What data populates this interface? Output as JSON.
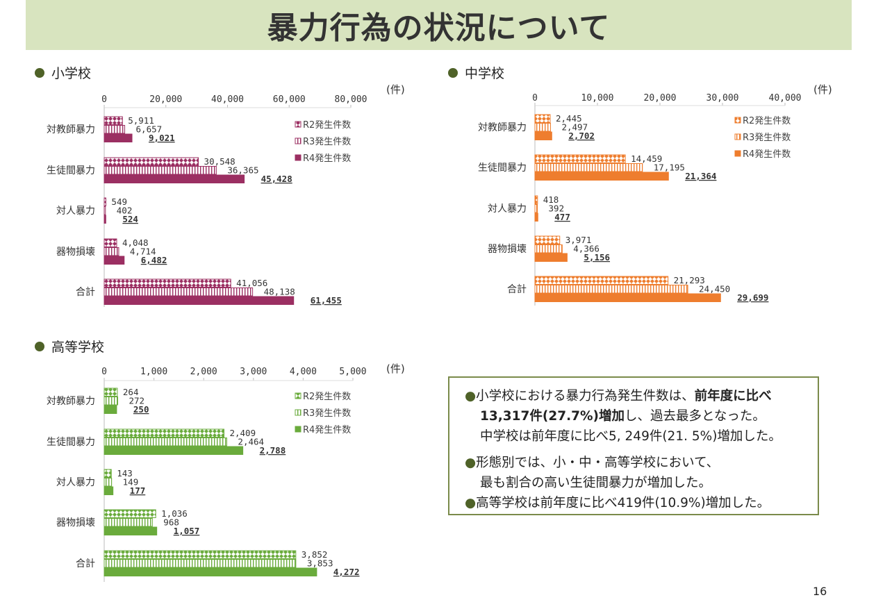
{
  "title": "暴力行為の状況について",
  "page_number": "16",
  "summary": {
    "line1_a": "小学校における暴力行為発生件数は、",
    "line1_b": "前年度に比べ",
    "line2_a": "13,317件(27.7%)増加",
    "line2_b": "し、過去最多となった。",
    "line3": "中学校は前年度に比べ5, 249件(21. 5%)増加した。",
    "line4": "形態別では、小・中・高等学校において、",
    "line5": "最も割合の高い生徒間暴力が増加した。",
    "line6": "高等学校は前年度に比べ419件(10.9%)増加した。"
  },
  "chart_data": [
    {
      "type": "bar",
      "orientation": "horizontal",
      "title": "小学校",
      "unit": "(件)",
      "categories": [
        "対教師暴力",
        "生徒間暴力",
        "対人暴力",
        "器物損壊",
        "合計"
      ],
      "xlim": [
        0,
        80000
      ],
      "ticks": [
        "0",
        "20,000",
        "40,000",
        "60,000",
        "80,000"
      ],
      "tick_values": [
        0,
        20000,
        40000,
        60000,
        80000
      ],
      "color": "#9b2f62",
      "legend_position": "right",
      "series": [
        {
          "name": "R2発生件数",
          "pattern": "checker",
          "values": [
            5911,
            30548,
            549,
            4048,
            41056
          ],
          "labels": [
            "5,911",
            "30,548",
            "549",
            "4,048",
            "41,056"
          ]
        },
        {
          "name": "R3発生件数",
          "pattern": "vertical-stripes",
          "values": [
            6657,
            36365,
            402,
            4714,
            48138
          ],
          "labels": [
            "6,657",
            "36,365",
            "402",
            "4,714",
            "48,138"
          ]
        },
        {
          "name": "R4発生件数",
          "pattern": "solid",
          "values": [
            9021,
            45428,
            524,
            6482,
            61455
          ],
          "labels": [
            "9,021",
            "45,428",
            "524",
            "6,482",
            "61,455"
          ]
        }
      ]
    },
    {
      "type": "bar",
      "orientation": "horizontal",
      "title": "中学校",
      "unit": "(件)",
      "categories": [
        "対教師暴力",
        "生徒間暴力",
        "対人暴力",
        "器物損壊",
        "合計"
      ],
      "xlim": [
        0,
        40000
      ],
      "ticks": [
        "0",
        "10,000",
        "20,000",
        "30,000",
        "40,000"
      ],
      "tick_values": [
        0,
        10000,
        20000,
        30000,
        40000
      ],
      "color": "#ee7d2e",
      "legend_position": "right",
      "series": [
        {
          "name": "R2発生件数",
          "pattern": "checker",
          "values": [
            2445,
            14459,
            418,
            3971,
            21293
          ],
          "labels": [
            "2,445",
            "14,459",
            "418",
            "3,971",
            "21,293"
          ]
        },
        {
          "name": "R3発生件数",
          "pattern": "vertical-stripes",
          "values": [
            2497,
            17195,
            392,
            4366,
            24450
          ],
          "labels": [
            "2,497",
            "17,195",
            "392",
            "4,366",
            "24,450"
          ]
        },
        {
          "name": "R4発生件数",
          "pattern": "solid",
          "values": [
            2702,
            21364,
            477,
            5156,
            29699
          ],
          "labels": [
            "2,702",
            "21,364",
            "477",
            "5,156",
            "29,699"
          ]
        }
      ]
    },
    {
      "type": "bar",
      "orientation": "horizontal",
      "title": "高等学校",
      "unit": "(件)",
      "categories": [
        "対教師暴力",
        "生徒間暴力",
        "対人暴力",
        "器物損壊",
        "合計"
      ],
      "xlim": [
        0,
        5000
      ],
      "ticks": [
        "0",
        "1,000",
        "2,000",
        "3,000",
        "4,000",
        "5,000"
      ],
      "tick_values": [
        0,
        1000,
        2000,
        3000,
        4000,
        5000
      ],
      "color": "#6aab3c",
      "legend_position": "right",
      "series": [
        {
          "name": "R2発生件数",
          "pattern": "checker",
          "values": [
            264,
            2409,
            143,
            1036,
            3852
          ],
          "labels": [
            "264",
            "2,409",
            "143",
            "1,036",
            "3,852"
          ]
        },
        {
          "name": "R3発生件数",
          "pattern": "vertical-stripes",
          "values": [
            272,
            2464,
            149,
            968,
            3853
          ],
          "labels": [
            "272",
            "2,464",
            "149",
            "968",
            "3,853"
          ]
        },
        {
          "name": "R4発生件数",
          "pattern": "solid",
          "values": [
            250,
            2788,
            177,
            1057,
            4272
          ],
          "labels": [
            "250",
            "2,788",
            "177",
            "1,057",
            "4,272"
          ]
        }
      ]
    }
  ]
}
